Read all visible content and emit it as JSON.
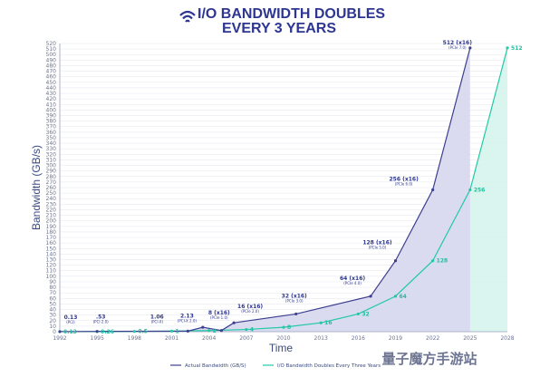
{
  "header": {
    "title_line1": "I/O BANDWIDTH DOUBLES",
    "title_line2": "EVERY 3 YEARS",
    "icon": "wifi-icon"
  },
  "watermark": {
    "text": "量子魔方手游站"
  },
  "colors": {
    "title": "#2d3691",
    "actual_line": "#3d3f8f",
    "actual_fill": "#d9d9ef",
    "doubling_line": "#22c9a6",
    "doubling_fill": "#d5f4ec",
    "grid": "#e4e6ee"
  },
  "chart_data": {
    "type": "area",
    "title": "I/O BANDWIDTH DOUBLES EVERY 3 YEARS",
    "xlabel": "Time",
    "ylabel": "Bandwidth (GB/s)",
    "ylim": [
      0,
      520
    ],
    "yticks": [
      "0",
      "10",
      "20",
      "30",
      "40",
      "50",
      "60",
      "70",
      "80",
      "90",
      "100",
      "110",
      "120",
      "130",
      "140",
      "150",
      "160",
      "170",
      "180",
      "190",
      "200",
      "210",
      "220",
      "230",
      "240",
      "250",
      "260",
      "270",
      "280",
      "290",
      "300",
      "310",
      "320",
      "330",
      "340",
      "350",
      "360",
      "370",
      "380",
      "390",
      "400",
      "410",
      "420",
      "430",
      "440",
      "450",
      "460",
      "470",
      "480",
      "490",
      "500",
      "510",
      "520"
    ],
    "x_ticks": [
      "1992",
      "1995",
      "1998",
      "2001",
      "2004",
      "2007",
      "2010",
      "2013",
      "2016",
      "2019",
      "2022",
      "2025",
      "2028"
    ],
    "grid": true,
    "legend_position": "bottom",
    "series": [
      {
        "name": "Actual Bandwidth (GB/S)",
        "points": [
          {
            "x": 1992,
            "y": 0.13
          },
          {
            "x": 1995,
            "y": 0.53
          },
          {
            "x": 2002.3,
            "y": 1.06
          },
          {
            "x": 2005,
            "y": 2.13
          },
          {
            "x": 2003.5,
            "y": 8
          },
          {
            "x": 2006,
            "y": 16
          },
          {
            "x": 2011,
            "y": 32
          },
          {
            "x": 2017,
            "y": 64
          },
          {
            "x": 2019,
            "y": 128
          },
          {
            "x": 2022,
            "y": 256
          },
          {
            "x": 2025,
            "y": 512
          }
        ]
      },
      {
        "name": "I/O Bandwidth Doubles Every Three Years",
        "points": [
          {
            "x": 1992,
            "y": 0.13
          },
          {
            "x": 1995,
            "y": 0.26
          },
          {
            "x": 1998,
            "y": 0.5
          },
          {
            "x": 2001,
            "y": 1
          },
          {
            "x": 2004,
            "y": 2
          },
          {
            "x": 2007,
            "y": 4
          },
          {
            "x": 2010,
            "y": 8
          },
          {
            "x": 2013,
            "y": 16
          },
          {
            "x": 2016,
            "y": 32
          },
          {
            "x": 2019,
            "y": 64
          },
          {
            "x": 2022,
            "y": 128
          },
          {
            "x": 2025,
            "y": 256
          },
          {
            "x": 2028,
            "y": 512
          }
        ]
      }
    ],
    "actual_annotations": [
      {
        "value": "0.13",
        "sub": "(PCI)"
      },
      {
        "value": ".53",
        "sub": "(PCI 2.0)"
      },
      {
        "value": "1.06",
        "sub": "(PCI-X)"
      },
      {
        "value": "2.13",
        "sub": "(PCI-X 2.0)"
      },
      {
        "value": "8 (x16)",
        "sub": "(PCIe 1.0)"
      },
      {
        "value": "16 (x16)",
        "sub": "(PCIe 2.0)"
      },
      {
        "value": "32 (x16)",
        "sub": "(PCIe 3.0)"
      },
      {
        "value": "64 (x16)",
        "sub": "(PCIe 4.0)"
      },
      {
        "value": "128 (x16)",
        "sub": "(PCIe 5.0)"
      },
      {
        "value": "256 (x16)",
        "sub": "(PCIe 6.0)"
      },
      {
        "value": "512 (x16)",
        "sub": "(PCIe 7.0)"
      }
    ],
    "doubling_labels": [
      "0.13",
      "0.26",
      "0.5",
      "1",
      "2",
      "4",
      "8",
      "16",
      "32",
      "64",
      "128",
      "256",
      "512"
    ]
  }
}
